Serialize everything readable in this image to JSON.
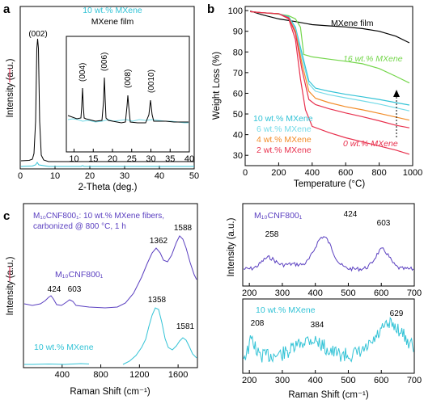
{
  "colors": {
    "black": "#000000",
    "cyan": "#33c3d6",
    "purple": "#5a3fc0",
    "red": "#e8304d",
    "orange": "#f28c28",
    "green": "#74d64b",
    "light_cyan": "#76dbe8",
    "red_underline": "#e0204a"
  },
  "chart_data": [
    {
      "panel": "a",
      "type": "line",
      "xlabel": "2-Theta (deg.)",
      "ylabel": "Intensity (a.u.)",
      "xlim": [
        0,
        50
      ],
      "xticks": [
        0,
        10,
        20,
        30,
        40,
        50
      ],
      "series": [
        {
          "name": "10 wt.% MXene",
          "color": "#33c3d6"
        },
        {
          "name": "MXene film",
          "color": "#000000"
        }
      ],
      "peaks": [
        {
          "label": "(002)",
          "x": 6.8
        }
      ],
      "inset": {
        "xlim": [
          8,
          40
        ],
        "xticks": [
          10,
          15,
          20,
          25,
          30,
          35,
          40
        ],
        "peaks": [
          {
            "label": "(004)",
            "x": 13.8
          },
          {
            "label": "(006)",
            "x": 20.2
          },
          {
            "label": "(008)",
            "x": 27.1
          },
          {
            "label": "(0010)",
            "x": 34.6
          }
        ]
      }
    },
    {
      "panel": "b",
      "type": "line",
      "xlabel": "Temperature (°C)",
      "ylabel": "Weight Loss (%)",
      "xlim": [
        0,
        1000
      ],
      "ylim": [
        25,
        102
      ],
      "xticks": [
        0,
        200,
        400,
        600,
        800,
        1000
      ],
      "yticks": [
        30,
        40,
        50,
        60,
        70,
        80,
        90,
        100
      ],
      "series": [
        {
          "name": "MXene film",
          "color": "#000000",
          "points": [
            [
              30,
              99.8
            ],
            [
              100,
              98
            ],
            [
              200,
              96
            ],
            [
              300,
              94.7
            ],
            [
              400,
              93.2
            ],
            [
              500,
              92.6
            ],
            [
              600,
              92.1
            ],
            [
              700,
              91.3
            ],
            [
              800,
              90
            ],
            [
              900,
              87.6
            ],
            [
              980,
              84.4
            ]
          ]
        },
        {
          "name": "16 wt.% MXene",
          "color": "#74d64b",
          "points": [
            [
              30,
              99.5
            ],
            [
              100,
              99
            ],
            [
              200,
              98.3
            ],
            [
              260,
              97.5
            ],
            [
              300,
              96
            ],
            [
              330,
              92
            ],
            [
              350,
              78.8
            ],
            [
              400,
              77.6
            ],
            [
              500,
              76.5
            ],
            [
              600,
              75.5
            ],
            [
              700,
              74.3
            ],
            [
              800,
              72
            ],
            [
              900,
              68.2
            ],
            [
              980,
              65
            ]
          ]
        },
        {
          "name": "10 wt.% MXene",
          "color": "#33c3d6",
          "points": [
            [
              30,
              99.5
            ],
            [
              100,
              99
            ],
            [
              200,
              98.5
            ],
            [
              260,
              97
            ],
            [
              300,
              92
            ],
            [
              340,
              79
            ],
            [
              380,
              66
            ],
            [
              420,
              62.5
            ],
            [
              500,
              61
            ],
            [
              600,
              59.5
            ],
            [
              700,
              58.3
            ],
            [
              800,
              57
            ],
            [
              900,
              55.5
            ],
            [
              980,
              54.3
            ]
          ]
        },
        {
          "name": "6 wt.% MXene",
          "color": "#76dbe8",
          "points": [
            [
              30,
              99.5
            ],
            [
              100,
              99
            ],
            [
              200,
              98.5
            ],
            [
              260,
              96.5
            ],
            [
              300,
              91
            ],
            [
              340,
              77
            ],
            [
              380,
              64.5
            ],
            [
              420,
              61
            ],
            [
              500,
              59.3
            ],
            [
              600,
              57.8
            ],
            [
              700,
              56.3
            ],
            [
              800,
              54.8
            ],
            [
              900,
              53
            ],
            [
              980,
              51.5
            ]
          ]
        },
        {
          "name": "4 wt.% MXene",
          "color": "#f28c28",
          "points": [
            [
              30,
              99.5
            ],
            [
              100,
              99
            ],
            [
              200,
              98.5
            ],
            [
              260,
              96.5
            ],
            [
              300,
              90
            ],
            [
              340,
              74
            ],
            [
              380,
              61
            ],
            [
              420,
              57.6
            ],
            [
              500,
              55.5
            ],
            [
              600,
              53.5
            ],
            [
              700,
              52
            ],
            [
              800,
              50.3
            ],
            [
              900,
              48.5
            ],
            [
              980,
              47
            ]
          ]
        },
        {
          "name": "2 wt.% MXene",
          "color": "#e8304d",
          "points": [
            [
              30,
              99.5
            ],
            [
              100,
              99
            ],
            [
              200,
              98.5
            ],
            [
              260,
              96.5
            ],
            [
              300,
              89
            ],
            [
              340,
              71
            ],
            [
              380,
              57
            ],
            [
              420,
              54.5
            ],
            [
              500,
              52.5
            ],
            [
              600,
              50.5
            ],
            [
              700,
              48.7
            ],
            [
              800,
              46.7
            ],
            [
              900,
              44.5
            ],
            [
              980,
              43.3
            ]
          ]
        },
        {
          "name": "0 wt.% MXene",
          "color": "#e8304d",
          "points": [
            [
              30,
              99.5
            ],
            [
              100,
              99
            ],
            [
              200,
              98.5
            ],
            [
              260,
              96
            ],
            [
              300,
              86
            ],
            [
              330,
              67
            ],
            [
              360,
              52
            ],
            [
              400,
              44
            ],
            [
              500,
              41
            ],
            [
              600,
              38.5
            ],
            [
              700,
              36.5
            ],
            [
              800,
              34.5
            ],
            [
              900,
              32.5
            ],
            [
              980,
              30.5
            ]
          ]
        }
      ]
    },
    {
      "panel": "c",
      "type": "line",
      "xlabel": "Raman Shift (cm⁻¹)",
      "ylabel": "Intensity (a.u.)",
      "xticks": [
        400,
        800,
        1200,
        1600
      ],
      "annotation_line1": "M₁₀CNF800₁: 10 wt.% MXene fibers,",
      "annotation_line2": "carbonized @ 800 °C, 1 h",
      "series": [
        {
          "name": "M₁₀CNF800₁",
          "color": "#5a3fc0",
          "peaks": [
            {
              "label": "424",
              "x": 424
            },
            {
              "label": "603",
              "x": 603
            },
            {
              "label": "1362",
              "x": 1362
            },
            {
              "label": "1588",
              "x": 1588
            }
          ]
        },
        {
          "name": "10 wt.% MXene",
          "color": "#33c3d6",
          "peaks": [
            {
              "label": "1358",
              "x": 1358
            },
            {
              "label": "1581",
              "x": 1581
            }
          ]
        }
      ]
    },
    {
      "panel": "c-right-top",
      "type": "line",
      "xlabel": "Raman Shift (cm⁻¹)",
      "ylabel": "Intensity (a.u.)",
      "xlim": [
        180,
        700
      ],
      "xticks": [
        200,
        300,
        400,
        500,
        600,
        700
      ],
      "series": [
        {
          "name": "M₁₀CNF800₁",
          "color": "#5a3fc0",
          "peaks": [
            {
              "label": "258",
              "x": 258
            },
            {
              "label": "424",
              "x": 424
            },
            {
              "label": "603",
              "x": 603
            }
          ]
        }
      ]
    },
    {
      "panel": "c-right-bottom",
      "type": "line",
      "xlabel": "Raman Shift (cm⁻¹)",
      "xlim": [
        180,
        700
      ],
      "xticks": [
        200,
        300,
        400,
        500,
        600,
        700
      ],
      "series": [
        {
          "name": "10 wt.% MXene",
          "color": "#33c3d6",
          "peaks": [
            {
              "label": "208",
              "x": 208
            },
            {
              "label": "384",
              "x": 384
            },
            {
              "label": "629",
              "x": 629
            }
          ]
        }
      ]
    }
  ]
}
